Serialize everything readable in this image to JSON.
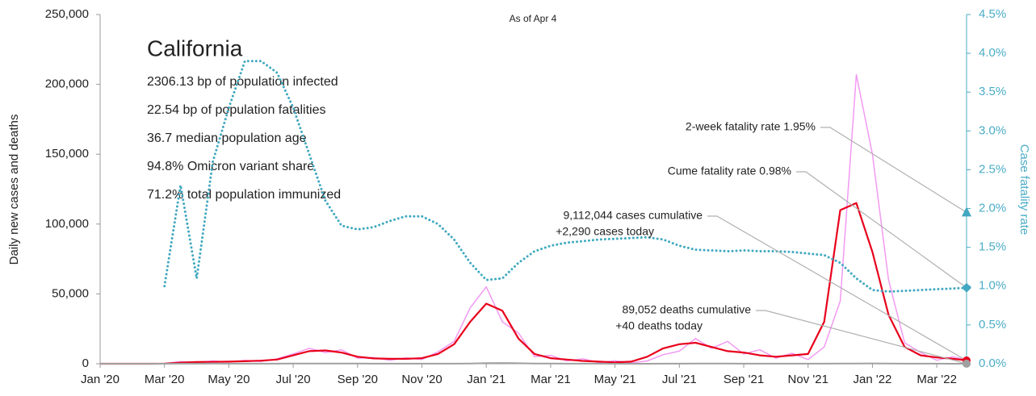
{
  "chart_data": {
    "type": "line",
    "title": "California",
    "subtitle": "As of Apr 4",
    "info_lines": [
      "2306.13 bp of population infected",
      "22.54 bp of population fatalities",
      "36.7 median population age",
      "94.8% Omicron variant share",
      "71.2% total population immunized"
    ],
    "y_label": "Daily new cases and deaths",
    "y2_label": "Case fatality rate",
    "xlim": [
      0,
      27
    ],
    "xticks": [
      {
        "value": 0,
        "label": "Jan '20"
      },
      {
        "value": 2,
        "label": "Mar '20"
      },
      {
        "value": 4,
        "label": "May '20"
      },
      {
        "value": 6,
        "label": "Jul '20"
      },
      {
        "value": 8,
        "label": "Sep '20"
      },
      {
        "value": 10,
        "label": "Nov '20"
      },
      {
        "value": 12,
        "label": "Jan '21"
      },
      {
        "value": 14,
        "label": "Mar '21"
      },
      {
        "value": 16,
        "label": "May '21"
      },
      {
        "value": 18,
        "label": "Jul '21"
      },
      {
        "value": 20,
        "label": "Sep '21"
      },
      {
        "value": 22,
        "label": "Nov '21"
      },
      {
        "value": 24,
        "label": "Jan '22"
      },
      {
        "value": 26,
        "label": "Mar '22"
      }
    ],
    "ylim": [
      0,
      250000
    ],
    "yticks": [
      0,
      {
        "value": 50000,
        "label": "50,000"
      },
      {
        "value": 100000,
        "label": "100,000"
      },
      {
        "value": 150000,
        "label": "150,000"
      },
      {
        "value": 200000,
        "label": "200,000"
      },
      {
        "value": 250000,
        "label": "250,000"
      }
    ],
    "y2lim": [
      0,
      4.5
    ],
    "y2ticks": [
      {
        "value": 0,
        "label": "0.0%"
      },
      {
        "value": 0.5,
        "label": "0.5%"
      },
      {
        "value": 1,
        "label": "1.0%"
      },
      {
        "value": 1.5,
        "label": "1.5%"
      },
      {
        "value": 2,
        "label": "2.0%"
      },
      {
        "value": 2.5,
        "label": "2.5%"
      },
      {
        "value": 3,
        "label": "3.0%"
      },
      {
        "value": 3.5,
        "label": "3.5%"
      },
      {
        "value": 4,
        "label": "4.0%"
      },
      {
        "value": 4.5,
        "label": "4.5%"
      }
    ],
    "x": [
      0,
      0.5,
      1,
      1.5,
      2,
      2.5,
      3,
      3.5,
      4,
      4.5,
      5,
      5.5,
      6,
      6.5,
      7,
      7.5,
      8,
      8.5,
      9,
      9.5,
      10,
      10.5,
      11,
      11.5,
      12,
      12.5,
      13,
      13.5,
      14,
      14.5,
      15,
      15.5,
      16,
      16.5,
      17,
      17.5,
      18,
      18.5,
      19,
      19.5,
      20,
      20.5,
      21,
      21.5,
      22,
      22.5,
      23,
      23.5,
      24,
      24.5,
      25,
      25.5,
      26,
      26.5,
      27
    ],
    "series": [
      {
        "color": "#f29af2",
        "width": 1.5,
        "values": [
          0,
          0,
          0,
          0,
          100,
          1500,
          900,
          2000,
          1200,
          2500,
          1600,
          3500,
          7000,
          11000,
          8000,
          10000,
          4000,
          4500,
          2500,
          4200,
          3000,
          8500,
          16000,
          40000,
          55000,
          30000,
          22000,
          5000,
          6000,
          2000,
          3500,
          800,
          2200,
          500,
          2000,
          6500,
          9000,
          18000,
          11000,
          16000,
          7000,
          10000,
          4000,
          7500,
          3000,
          12000,
          45000,
          207000,
          150000,
          60000,
          15000,
          8000,
          2500,
          5000,
          2290
        ]
      },
      {
        "color": "#e8001c",
        "width": 2.2,
        "values": [
          0,
          0,
          0,
          0,
          50,
          800,
          1200,
          1300,
          1500,
          1800,
          2200,
          3000,
          6000,
          9000,
          9500,
          8000,
          5000,
          3800,
          3500,
          3500,
          4000,
          7000,
          14000,
          30000,
          43000,
          38000,
          18000,
          7000,
          4000,
          3000,
          2000,
          1500,
          1000,
          1500,
          5000,
          11000,
          14000,
          15000,
          12000,
          9000,
          8000,
          6000,
          5000,
          6000,
          7000,
          30000,
          110000,
          115000,
          80000,
          35000,
          12000,
          6000,
          4500,
          3500,
          2290
        ]
      },
      {
        "color": "#a0a0a0",
        "width": 2,
        "values": [
          0,
          0,
          0,
          0,
          5,
          50,
          80,
          90,
          80,
          75,
          70,
          70,
          90,
          130,
          140,
          130,
          100,
          80,
          60,
          50,
          50,
          55,
          80,
          200,
          450,
          500,
          350,
          180,
          100,
          60,
          40,
          30,
          25,
          20,
          20,
          30,
          60,
          100,
          110,
          90,
          70,
          60,
          50,
          45,
          50,
          60,
          120,
          200,
          220,
          150,
          80,
          50,
          30,
          25,
          40
        ]
      },
      {
        "color": "#40a8c0",
        "width": 3,
        "dotted": true,
        "axis": "y2",
        "values": [
          null,
          null,
          null,
          null,
          1.0,
          2.3,
          1.1,
          2.6,
          3.3,
          3.9,
          3.9,
          3.75,
          3.3,
          2.7,
          2.1,
          1.78,
          1.73,
          1.76,
          1.84,
          1.9,
          1.9,
          1.8,
          1.6,
          1.3,
          1.08,
          1.1,
          1.3,
          1.45,
          1.52,
          1.56,
          1.58,
          1.6,
          1.61,
          1.62,
          1.63,
          1.6,
          1.52,
          1.47,
          1.46,
          1.45,
          1.46,
          1.45,
          1.45,
          1.44,
          1.42,
          1.4,
          1.3,
          1.1,
          0.95,
          0.93,
          0.94,
          0.95,
          0.96,
          0.97,
          0.98
        ]
      }
    ],
    "markers": [
      {
        "lines": [
          "2-week fatality rate 1.95%"
        ],
        "value": 1.95,
        "axis": "y2",
        "shape": "triangle",
        "color": "#40a8c0"
      },
      {
        "lines": [
          "Cume fatality rate 0.98%"
        ],
        "value": 0.98,
        "axis": "y2",
        "shape": "diamond",
        "color": "#40a8c0"
      },
      {
        "lines": [
          "9,112,044 cases cumulative",
          "+2,290 cases today"
        ],
        "value": 2290,
        "axis": "y",
        "shape": "circle",
        "color": "#e8001c"
      },
      {
        "lines": [
          "89,052 deaths cumulative",
          "+40 deaths today"
        ],
        "value": 40,
        "axis": "y",
        "shape": "circle",
        "color": "#a0a0a0"
      }
    ]
  }
}
